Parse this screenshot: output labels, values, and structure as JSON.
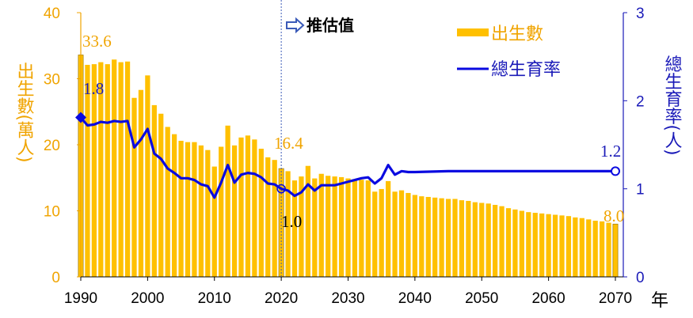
{
  "colors": {
    "bars": "#ffc000",
    "bar_edge": "#e0a800",
    "line": "#0a0ae0",
    "left_axis": "#f0a400",
    "right_axis": "#1a1ab8",
    "divider": "#3a5ab8"
  },
  "chart_data": {
    "type": "bar",
    "x_unit": "年",
    "y_left": {
      "label": "出生數(萬人)",
      "ylim": [
        0,
        40
      ],
      "ticks": [
        "0",
        "10",
        "20",
        "30",
        "40"
      ]
    },
    "y_right": {
      "label": "總生育率(人)",
      "ylim": [
        0,
        3
      ],
      "ticks": [
        "0",
        "1",
        "2",
        "3"
      ]
    },
    "x_ticks": [
      "1990",
      "2000",
      "2010",
      "2020",
      "2030",
      "2040",
      "2050",
      "2060",
      "2070"
    ],
    "xlim": [
      1990,
      2070
    ],
    "projection_start": 2020,
    "projection_label": "推估值",
    "legend": {
      "position": "top-right",
      "bars": "出生數",
      "line": "總生育率"
    },
    "annotations": {
      "birth_1990": "33.6",
      "tfr_1990": "1.8",
      "birth_2020": "16.4",
      "tfr_2020": "1.0",
      "tfr_2070": "1.2",
      "birth_2070": "8.0"
    },
    "series": [
      {
        "name": "出生數",
        "kind": "bar",
        "axis": "left",
        "x": [
          1990,
          1991,
          1992,
          1993,
          1994,
          1995,
          1996,
          1997,
          1998,
          1999,
          2000,
          2001,
          2002,
          2003,
          2004,
          2005,
          2006,
          2007,
          2008,
          2009,
          2010,
          2011,
          2012,
          2013,
          2014,
          2015,
          2016,
          2017,
          2018,
          2019,
          2020,
          2021,
          2022,
          2023,
          2024,
          2025,
          2026,
          2027,
          2028,
          2029,
          2030,
          2031,
          2032,
          2033,
          2034,
          2035,
          2036,
          2037,
          2038,
          2039,
          2040,
          2041,
          2042,
          2043,
          2044,
          2045,
          2046,
          2047,
          2048,
          2049,
          2050,
          2051,
          2052,
          2053,
          2054,
          2055,
          2056,
          2057,
          2058,
          2059,
          2060,
          2061,
          2062,
          2063,
          2064,
          2065,
          2066,
          2067,
          2068,
          2069,
          2070
        ],
        "values": [
          33.6,
          32.1,
          32.2,
          32.5,
          32.2,
          32.9,
          32.5,
          32.6,
          27.1,
          28.3,
          30.5,
          26.0,
          24.7,
          22.7,
          21.6,
          20.6,
          20.4,
          20.4,
          19.9,
          19.2,
          16.7,
          19.7,
          22.9,
          19.9,
          21.1,
          21.4,
          20.8,
          19.4,
          18.1,
          17.7,
          16.4,
          16.0,
          14.6,
          15.2,
          16.8,
          14.9,
          15.6,
          15.3,
          15.2,
          15.1,
          14.9,
          14.8,
          14.7,
          14.6,
          12.9,
          13.3,
          14.5,
          12.9,
          13.1,
          12.7,
          12.4,
          12.2,
          12.1,
          12.0,
          11.9,
          11.8,
          11.8,
          11.6,
          11.5,
          11.3,
          11.2,
          11.1,
          10.9,
          10.7,
          10.4,
          10.2,
          10.0,
          9.8,
          9.7,
          9.6,
          9.5,
          9.4,
          9.3,
          9.2,
          9.0,
          8.9,
          8.7,
          8.5,
          8.4,
          8.2,
          8.0
        ]
      },
      {
        "name": "總生育率",
        "kind": "line",
        "axis": "right",
        "x": [
          1990,
          1991,
          1992,
          1993,
          1994,
          1995,
          1996,
          1997,
          1998,
          1999,
          2000,
          2001,
          2002,
          2003,
          2004,
          2005,
          2006,
          2007,
          2008,
          2009,
          2010,
          2011,
          2012,
          2013,
          2014,
          2015,
          2016,
          2017,
          2018,
          2019,
          2020,
          2021,
          2022,
          2023,
          2024,
          2025,
          2026,
          2027,
          2028,
          2029,
          2030,
          2031,
          2032,
          2033,
          2034,
          2035,
          2036,
          2037,
          2038,
          2039,
          2040,
          2045,
          2050,
          2055,
          2060,
          2065,
          2070
        ],
        "values": [
          1.81,
          1.72,
          1.73,
          1.76,
          1.75,
          1.77,
          1.76,
          1.77,
          1.47,
          1.56,
          1.68,
          1.4,
          1.34,
          1.23,
          1.18,
          1.12,
          1.12,
          1.1,
          1.05,
          1.03,
          0.9,
          1.07,
          1.27,
          1.07,
          1.16,
          1.18,
          1.17,
          1.13,
          1.06,
          1.05,
          1.0,
          0.98,
          0.92,
          0.96,
          1.05,
          0.98,
          1.04,
          1.04,
          1.04,
          1.06,
          1.08,
          1.1,
          1.12,
          1.13,
          1.06,
          1.12,
          1.27,
          1.16,
          1.2,
          1.19,
          1.19,
          1.2,
          1.2,
          1.2,
          1.2,
          1.2,
          1.2
        ]
      }
    ]
  }
}
